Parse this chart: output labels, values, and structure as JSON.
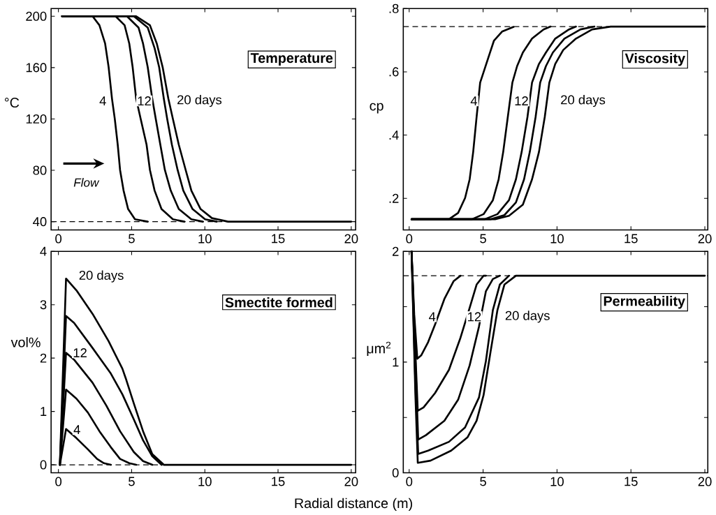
{
  "chart_data": [
    {
      "type": "line",
      "title": "Temperature",
      "ylabel": "°C",
      "xlim": [
        -0.5,
        20.3
      ],
      "ylim": [
        33.5,
        206
      ],
      "xticks": [
        0,
        5,
        10,
        15,
        20
      ],
      "yticks": [
        40,
        80,
        120,
        160,
        200
      ],
      "grid": false,
      "marker": "none",
      "line_style": "solid",
      "ref_lines": [
        {
          "axis": "y",
          "value": 40,
          "line_style": "dashed",
          "color": "#000000"
        }
      ],
      "annotations": [
        "4",
        "12",
        "20 days",
        "Flow"
      ],
      "series": [
        {
          "color": "#000000",
          "x": [
            0.25,
            2.33,
            2.8,
            3.19,
            3.43,
            3.66,
            3.85,
            4.05,
            4.21,
            4.45,
            4.76,
            5.23,
            6.1
          ],
          "values": [
            200,
            200,
            193,
            178.7,
            160.3,
            135.7,
            120,
            100,
            80.3,
            64.2,
            49.8,
            41.8,
            40
          ]
        },
        {
          "color": "#000000",
          "x": [
            0.25,
            3.9,
            4.52,
            4.84,
            5.07,
            5.31,
            5.62,
            6.02,
            6.25,
            6.57,
            7.04,
            7.82,
            8.61
          ],
          "values": [
            200,
            200,
            193,
            178.7,
            160.3,
            135.7,
            120,
            100,
            80.3,
            64.2,
            49.8,
            41.8,
            40
          ]
        },
        {
          "color": "#000000",
          "x": [
            0.25,
            4.68,
            5.47,
            5.78,
            6.1,
            6.41,
            6.65,
            6.96,
            7.27,
            7.67,
            8.22,
            9.08,
            9.87
          ],
          "values": [
            200,
            200,
            191.2,
            178.7,
            160.3,
            135.7,
            120,
            100,
            80.3,
            64.2,
            49.8,
            41.8,
            40
          ]
        },
        {
          "color": "#000000",
          "x": [
            0.25,
            5.15,
            6.1,
            6.57,
            6.88,
            7.2,
            7.43,
            7.75,
            8.14,
            8.53,
            9.16,
            10.02,
            10.81
          ],
          "values": [
            200,
            200,
            191.2,
            175.1,
            160.3,
            135.7,
            120,
            100,
            80.3,
            64.2,
            49.8,
            41.8,
            40
          ]
        },
        {
          "color": "#000000",
          "x": [
            0.25,
            5.31,
            6.25,
            6.72,
            7.12,
            7.51,
            7.82,
            8.22,
            8.69,
            9.08,
            9.71,
            10.49,
            11.59,
            20
          ],
          "values": [
            200,
            200,
            193,
            178.7,
            160.3,
            135.7,
            120,
            100,
            80.3,
            64.2,
            49.8,
            42.7,
            40,
            40
          ]
        }
      ]
    },
    {
      "type": "line",
      "title": "Viscosity",
      "ylabel": "cp",
      "xlim": [
        -0.4,
        20.2
      ],
      "ylim": [
        0.1,
        0.8
      ],
      "xticks": [
        0,
        5,
        10,
        15,
        20
      ],
      "yticks": [
        {
          "value": 0.2,
          "label": ".2"
        },
        {
          "value": 0.4,
          "label": ".4"
        },
        {
          "value": 0.6,
          "label": ".6"
        },
        {
          "value": 0.8,
          "label": ".8"
        }
      ],
      "grid": false,
      "marker": "none",
      "line_style": "solid",
      "ref_lines": [
        {
          "axis": "y",
          "value": 0.743,
          "line_style": "dashed",
          "color": "#000000"
        }
      ],
      "annotations": [
        "4",
        "12",
        "20 days"
      ],
      "series": [
        {
          "color": "#000000",
          "x": [
            0.16,
            2.69,
            3.31,
            3.78,
            4.09,
            4.33,
            4.56,
            4.8,
            5.11,
            5.42,
            5.73,
            6.28,
            7.06
          ],
          "values": [
            0.134,
            0.134,
            0.154,
            0.201,
            0.26,
            0.347,
            0.457,
            0.566,
            0.61,
            0.654,
            0.698,
            0.727,
            0.742
          ]
        },
        {
          "color": "#000000",
          "x": [
            0.16,
            4.25,
            5.03,
            5.66,
            6.05,
            6.36,
            6.67,
            6.98,
            7.3,
            7.69,
            8.31,
            9.09,
            9.56
          ],
          "values": [
            0.134,
            0.134,
            0.15,
            0.194,
            0.26,
            0.347,
            0.457,
            0.566,
            0.618,
            0.661,
            0.705,
            0.734,
            0.743
          ]
        },
        {
          "color": "#000000",
          "x": [
            0.16,
            5.11,
            5.97,
            6.75,
            7.22,
            7.61,
            8.0,
            8.31,
            8.78,
            9.25,
            9.88,
            10.81,
            11.28
          ],
          "values": [
            0.134,
            0.134,
            0.15,
            0.194,
            0.26,
            0.347,
            0.457,
            0.566,
            0.625,
            0.661,
            0.705,
            0.734,
            0.743
          ]
        },
        {
          "color": "#000000",
          "x": [
            0.16,
            5.5,
            6.44,
            7.22,
            7.77,
            8.16,
            8.55,
            8.86,
            9.25,
            9.72,
            10.5,
            11.59,
            12.53
          ],
          "values": [
            0.134,
            0.134,
            0.147,
            0.187,
            0.26,
            0.347,
            0.457,
            0.566,
            0.618,
            0.661,
            0.705,
            0.734,
            0.743
          ]
        },
        {
          "color": "#000000",
          "x": [
            0.16,
            5.81,
            6.75,
            7.69,
            8.31,
            8.78,
            9.17,
            9.48,
            9.88,
            10.42,
            11.28,
            12.38,
            13.63,
            20
          ],
          "values": [
            0.134,
            0.134,
            0.145,
            0.18,
            0.26,
            0.347,
            0.457,
            0.566,
            0.625,
            0.669,
            0.705,
            0.734,
            0.743,
            0.743
          ]
        }
      ]
    },
    {
      "type": "line",
      "title": "Smectite formed",
      "ylabel": "vol%",
      "xlabel": "Radial distance (m)",
      "xlim": [
        -0.5,
        20.3
      ],
      "ylim": [
        -0.15,
        4
      ],
      "xticks": [
        0,
        5,
        10,
        15,
        20
      ],
      "yticks": [
        0,
        1,
        2,
        3,
        4
      ],
      "grid": false,
      "marker": "none",
      "line_style": "solid",
      "ref_lines": [
        {
          "axis": "y",
          "value": 0,
          "line_style": "dashed",
          "color": "#000000"
        }
      ],
      "annotations": [
        "20 days",
        "12",
        "4"
      ],
      "series": [
        {
          "color": "#000000",
          "x": [
            0.1,
            0.52,
            1.23,
            2.01,
            2.64,
            3.11,
            3.58
          ],
          "values": [
            0,
            0.67,
            0.5,
            0.29,
            0.11,
            0.03,
            0
          ]
        },
        {
          "color": "#000000",
          "x": [
            0.1,
            0.52,
            1.23,
            2.01,
            2.8,
            3.58,
            4.21,
            4.84,
            5.31
          ],
          "values": [
            0,
            1.41,
            1.24,
            0.98,
            0.63,
            0.33,
            0.11,
            0.03,
            0
          ]
        },
        {
          "color": "#000000",
          "x": [
            0.1,
            0.52,
            1.07,
            2.33,
            3.27,
            4.21,
            5.15,
            5.78,
            6.41
          ],
          "values": [
            0,
            2.1,
            1.97,
            1.54,
            1.11,
            0.63,
            0.24,
            0.07,
            0
          ]
        },
        {
          "color": "#000000",
          "x": [
            0.1,
            0.52,
            1.07,
            2.33,
            3.58,
            4.37,
            5.15,
            5.78,
            6.41,
            7.04
          ],
          "values": [
            0,
            2.79,
            2.66,
            2.19,
            1.71,
            1.32,
            0.85,
            0.46,
            0.16,
            0
          ]
        },
        {
          "color": "#000000",
          "x": [
            0.1,
            0.52,
            1.23,
            2.33,
            3.42,
            4.37,
            4.6,
            5.15,
            5.78,
            6.41,
            7.2,
            20
          ],
          "values": [
            0,
            3.49,
            3.27,
            2.83,
            2.32,
            1.8,
            1.62,
            1.15,
            0.63,
            0.2,
            0,
            0
          ]
        }
      ]
    },
    {
      "type": "line",
      "title": "Permeability",
      "ylabel": "μm$^{2}$",
      "xlim": [
        -0.4,
        20.2
      ],
      "ylim": [
        0,
        2
      ],
      "xticks": [
        0,
        5,
        10,
        15,
        20
      ],
      "yticks": [
        0,
        {
          "value": 0.5,
          "label": null
        },
        1,
        {
          "value": 1.5,
          "label": null
        },
        2
      ],
      "grid": false,
      "marker": "none",
      "line_style": "solid",
      "ref_lines": [
        {
          "axis": "y",
          "value": 1.78,
          "line_style": "dashed",
          "color": "#000000"
        }
      ],
      "annotations": [
        "4",
        "12",
        "20 days"
      ],
      "series": [
        {
          "color": "#000000",
          "x": [
            0.16,
            0.34,
            0.55,
            0.81,
            1.28,
            1.75,
            2.38,
            3.0,
            3.47
          ],
          "values": [
            2.0,
            1.43,
            1.03,
            1.06,
            1.18,
            1.34,
            1.57,
            1.73,
            1.78
          ]
        },
        {
          "color": "#000000",
          "x": [
            0.16,
            0.38,
            0.58,
            0.97,
            1.75,
            2.69,
            3.47,
            4.09,
            4.56,
            5.03,
            5.19
          ],
          "values": [
            2.0,
            1.22,
            0.56,
            0.59,
            0.72,
            0.93,
            1.22,
            1.49,
            1.7,
            1.78,
            1.78
          ]
        },
        {
          "color": "#000000",
          "x": [
            0.16,
            0.42,
            0.61,
            1.13,
            2.38,
            3.31,
            4.09,
            4.72,
            5.19,
            5.66,
            6.13
          ],
          "values": [
            2.0,
            1.01,
            0.3,
            0.34,
            0.47,
            0.66,
            0.97,
            1.32,
            1.64,
            1.75,
            1.78
          ]
        },
        {
          "color": "#000000",
          "x": [
            0.16,
            0.42,
            0.61,
            1.28,
            2.69,
            3.78,
            4.72,
            5.19,
            5.66,
            6.13,
            6.75
          ],
          "values": [
            2.0,
            0.8,
            0.17,
            0.2,
            0.28,
            0.41,
            0.68,
            1.01,
            1.47,
            1.7,
            1.78
          ]
        },
        {
          "color": "#000000",
          "x": [
            0.16,
            0.42,
            0.58,
            1.44,
            2.84,
            3.94,
            4.56,
            5.03,
            5.5,
            5.97,
            6.44,
            7.22,
            20
          ],
          "values": [
            2.0,
            0.7,
            0.09,
            0.11,
            0.2,
            0.32,
            0.47,
            0.7,
            1.09,
            1.47,
            1.7,
            1.78,
            1.78
          ]
        }
      ]
    }
  ]
}
